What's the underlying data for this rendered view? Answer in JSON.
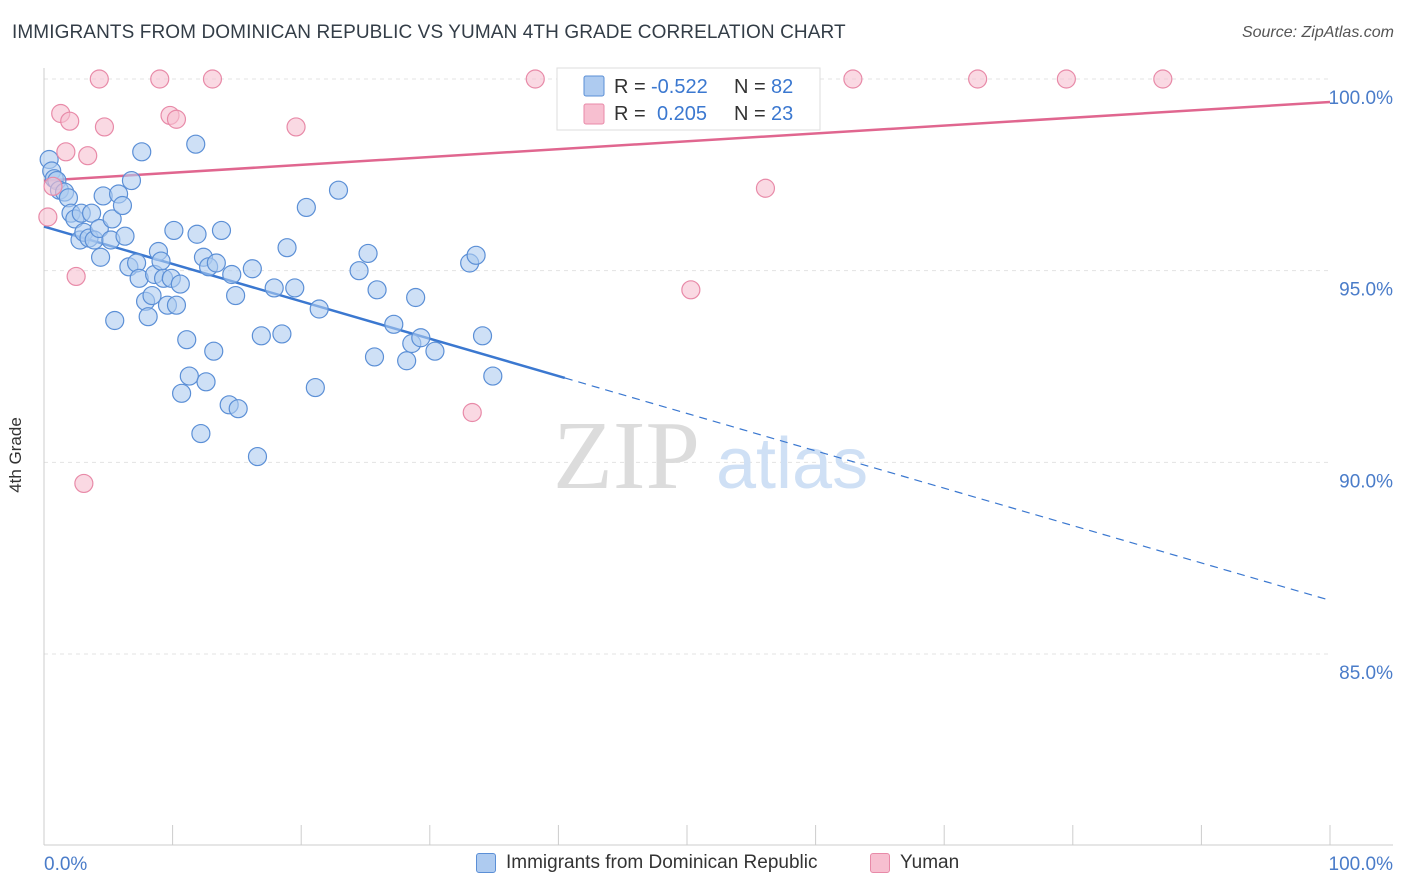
{
  "title": "IMMIGRANTS FROM DOMINICAN REPUBLIC VS YUMAN 4TH GRADE CORRELATION CHART",
  "source": "Source: ZipAtlas.com",
  "watermark": {
    "zip": "ZIP",
    "atlas": "atlas"
  },
  "colors": {
    "blue_fill": "#aecbf0",
    "blue_stroke": "#5b8fd6",
    "blue_line": "#3b78d0",
    "pink_fill": "#f7bfd0",
    "pink_stroke": "#e88aa8",
    "pink_line": "#e0668f",
    "tick_text": "#4a7cc9",
    "grid": "#e3e3e3"
  },
  "stats_box": {
    "rows": [
      {
        "r_label": "R =",
        "r_value": "-0.522",
        "n_label": "N =",
        "n_value": "82",
        "series": "blue"
      },
      {
        "r_label": "R =",
        "r_value": "0.205",
        "n_label": "N =",
        "n_value": "23",
        "series": "pink"
      }
    ]
  },
  "legend": [
    {
      "label": "Immigrants from Dominican Republic",
      "series": "blue"
    },
    {
      "label": "Yuman",
      "series": "pink"
    }
  ],
  "chart_data": {
    "type": "scatter",
    "title": "IMMIGRANTS FROM DOMINICAN REPUBLIC VS YUMAN 4TH GRADE CORRELATION CHART",
    "xlabel": "",
    "ylabel": "4th Grade",
    "xlim": [
      0,
      100
    ],
    "ylim": [
      80.5,
      101.0
    ],
    "x_tick_labels": [
      {
        "value": 0,
        "label": "0.0%"
      },
      {
        "value": 100,
        "label": "100.0%"
      }
    ],
    "y_tick_labels": [
      {
        "value": 100,
        "label": "100.0%"
      },
      {
        "value": 95,
        "label": "95.0%"
      },
      {
        "value": 90,
        "label": "90.0%"
      },
      {
        "value": 85,
        "label": "85.0%"
      }
    ],
    "grid": true,
    "legend_position": "bottom",
    "series": [
      {
        "name": "Immigrants from Dominican Republic",
        "color": "blue",
        "trend": {
          "x0": 0,
          "y0": 96.15,
          "x1": 100,
          "y1": 86.4,
          "solid_until_x": 40.5
        },
        "points": [
          [
            0.4,
            97.9
          ],
          [
            0.6,
            97.6
          ],
          [
            0.8,
            97.4
          ],
          [
            1.0,
            97.35
          ],
          [
            1.2,
            97.1
          ],
          [
            1.6,
            97.05
          ],
          [
            1.9,
            96.9
          ],
          [
            2.1,
            96.5
          ],
          [
            2.4,
            96.35
          ],
          [
            2.8,
            95.8
          ],
          [
            2.9,
            96.5
          ],
          [
            3.1,
            96.0
          ],
          [
            3.5,
            95.85
          ],
          [
            3.7,
            96.5
          ],
          [
            3.9,
            95.8
          ],
          [
            4.3,
            96.1
          ],
          [
            4.4,
            95.35
          ],
          [
            4.6,
            96.95
          ],
          [
            5.2,
            95.8
          ],
          [
            5.3,
            96.35
          ],
          [
            5.5,
            93.7
          ],
          [
            5.8,
            97.0
          ],
          [
            6.1,
            96.7
          ],
          [
            6.3,
            95.9
          ],
          [
            6.6,
            95.1
          ],
          [
            6.8,
            97.35
          ],
          [
            7.2,
            95.2
          ],
          [
            7.4,
            94.8
          ],
          [
            7.6,
            98.1
          ],
          [
            7.9,
            94.2
          ],
          [
            8.1,
            93.8
          ],
          [
            8.4,
            94.35
          ],
          [
            8.6,
            94.9
          ],
          [
            8.9,
            95.5
          ],
          [
            9.1,
            95.25
          ],
          [
            9.3,
            94.8
          ],
          [
            9.6,
            94.1
          ],
          [
            9.9,
            94.8
          ],
          [
            10.1,
            96.05
          ],
          [
            10.3,
            94.1
          ],
          [
            10.6,
            94.65
          ],
          [
            10.7,
            91.8
          ],
          [
            11.1,
            93.2
          ],
          [
            11.3,
            92.25
          ],
          [
            11.8,
            98.3
          ],
          [
            11.9,
            95.95
          ],
          [
            12.2,
            90.75
          ],
          [
            12.4,
            95.35
          ],
          [
            12.6,
            92.1
          ],
          [
            12.8,
            95.1
          ],
          [
            13.2,
            92.9
          ],
          [
            13.4,
            95.2
          ],
          [
            13.8,
            96.05
          ],
          [
            14.4,
            91.5
          ],
          [
            14.6,
            94.9
          ],
          [
            14.9,
            94.35
          ],
          [
            15.1,
            91.4
          ],
          [
            16.2,
            95.05
          ],
          [
            16.6,
            90.15
          ],
          [
            16.9,
            93.3
          ],
          [
            17.9,
            94.55
          ],
          [
            18.5,
            93.35
          ],
          [
            18.9,
            95.6
          ],
          [
            19.5,
            94.55
          ],
          [
            20.4,
            96.65
          ],
          [
            21.1,
            91.95
          ],
          [
            21.4,
            94.0
          ],
          [
            22.9,
            97.1
          ],
          [
            24.5,
            95.0
          ],
          [
            25.2,
            95.45
          ],
          [
            25.7,
            92.75
          ],
          [
            25.9,
            94.5
          ],
          [
            27.2,
            93.6
          ],
          [
            28.2,
            92.65
          ],
          [
            28.6,
            93.1
          ],
          [
            28.9,
            94.3
          ],
          [
            29.3,
            93.25
          ],
          [
            30.4,
            92.9
          ],
          [
            33.1,
            95.2
          ],
          [
            33.6,
            95.4
          ],
          [
            34.1,
            93.3
          ],
          [
            34.9,
            92.25
          ]
        ]
      },
      {
        "name": "Yuman",
        "color": "pink",
        "trend": {
          "x0": 0,
          "y0": 97.35,
          "x1": 100,
          "y1": 99.4,
          "solid_until_x": 100
        },
        "points": [
          [
            0.3,
            96.4
          ],
          [
            0.7,
            97.2
          ],
          [
            1.3,
            99.1
          ],
          [
            1.7,
            98.1
          ],
          [
            2.0,
            98.9
          ],
          [
            2.5,
            94.85
          ],
          [
            3.1,
            89.45
          ],
          [
            3.4,
            98.0
          ],
          [
            4.3,
            100.0
          ],
          [
            4.7,
            98.75
          ],
          [
            9.0,
            100.0
          ],
          [
            9.8,
            99.05
          ],
          [
            10.3,
            98.95
          ],
          [
            13.1,
            100.0
          ],
          [
            19.6,
            98.75
          ],
          [
            33.3,
            91.3
          ],
          [
            38.2,
            100.0
          ],
          [
            50.3,
            94.5
          ],
          [
            56.1,
            97.15
          ],
          [
            62.9,
            100.0
          ],
          [
            72.6,
            100.0
          ],
          [
            79.5,
            100.0
          ],
          [
            87.0,
            100.0
          ]
        ]
      }
    ]
  }
}
